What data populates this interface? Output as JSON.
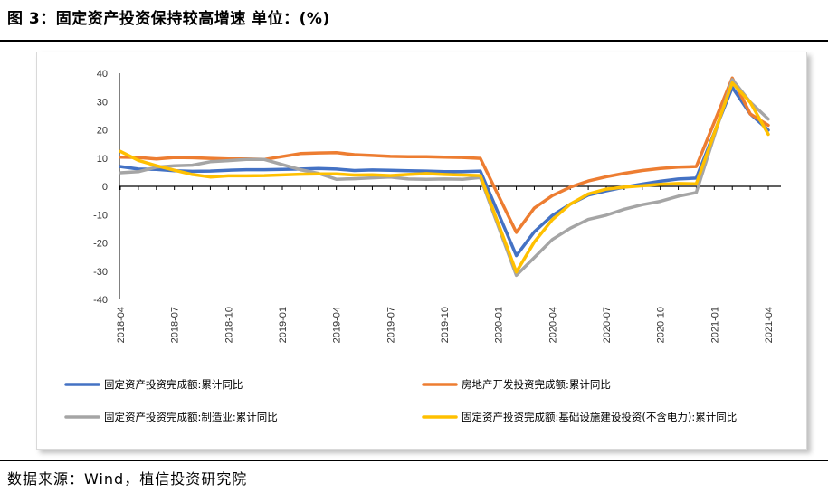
{
  "page": {
    "title": "图 3：固定资产投资保持较高增速 单位：(%)",
    "source": "数据来源：Wind，植信投资研究院"
  },
  "chart_data": {
    "type": "line",
    "title": "图 3：固定资产投资保持较高增速 单位：(%)",
    "ylim": [
      -40,
      40
    ],
    "yticks": [
      40,
      30,
      20,
      10,
      0,
      -10,
      -20,
      -30,
      -40
    ],
    "grid": false,
    "legend_placement": "bottom",
    "x": [
      "2018-04",
      "2018-05",
      "2018-06",
      "2018-07",
      "2018-08",
      "2018-09",
      "2018-10",
      "2018-11",
      "2018-12",
      "2019-01",
      "2019-02",
      "2019-03",
      "2019-04",
      "2019-05",
      "2019-06",
      "2019-07",
      "2019-08",
      "2019-09",
      "2019-10",
      "2019-11",
      "2019-12",
      "2020-01",
      "2020-02",
      "2020-03",
      "2020-04",
      "2020-05",
      "2020-06",
      "2020-07",
      "2020-08",
      "2020-09",
      "2020-10",
      "2020-11",
      "2020-12",
      "2021-01",
      "2021-02",
      "2021-03",
      "2021-04"
    ],
    "xtick_labels": [
      "2018-04",
      "2018-07",
      "2018-10",
      "2019-01",
      "2019-04",
      "2019-07",
      "2019-10",
      "2020-01",
      "2020-04",
      "2020-07",
      "2020-10",
      "2021-01",
      "2021-04"
    ],
    "series": [
      {
        "name": "固定资产投资完成额:累计同比",
        "color": "#4472c4",
        "values": [
          7,
          6.1,
          6,
          5.5,
          5.3,
          5.4,
          5.7,
          5.9,
          5.9,
          null,
          6.1,
          6.3,
          6.1,
          5.6,
          5.8,
          5.7,
          5.5,
          5.4,
          5.2,
          5.2,
          5.4,
          null,
          -24.5,
          -16.1,
          -10.3,
          -6.3,
          -3.1,
          -1.6,
          -0.3,
          0.8,
          1.8,
          2.6,
          2.9,
          null,
          35,
          25.6,
          19.9
        ]
      },
      {
        "name": "房地产开发投资完成额:累计同比",
        "color": "#ed7d31",
        "values": [
          10.3,
          10.2,
          9.7,
          10.2,
          10.1,
          9.9,
          9.7,
          9.7,
          9.5,
          null,
          11.6,
          11.8,
          11.9,
          11.2,
          10.9,
          10.6,
          10.5,
          10.5,
          10.3,
          10.2,
          9.9,
          null,
          -16.3,
          -7.7,
          -3.3,
          -0.3,
          1.9,
          3.4,
          4.6,
          5.6,
          6.3,
          6.8,
          7,
          null,
          38.3,
          25.6,
          21.6
        ]
      },
      {
        "name": "固定资产投资完成额:制造业:累计同比",
        "color": "#a5a5a5",
        "values": [
          4.8,
          5.2,
          6.8,
          7.3,
          7.5,
          8.7,
          9.1,
          9.5,
          9.5,
          null,
          5.9,
          4.6,
          2.5,
          2.7,
          3,
          3.3,
          2.6,
          2.5,
          2.6,
          2.5,
          3.1,
          null,
          -31.5,
          -25.2,
          -18.8,
          -14.8,
          -11.7,
          -10.2,
          -8.1,
          -6.5,
          -5.3,
          -3.5,
          -2.2,
          null,
          37.8,
          29.8,
          23.8
        ]
      },
      {
        "name": "固定资产投资完成额:基础设施建设投资(不含电力):累计同比",
        "color": "#ffc000",
        "values": [
          12.4,
          9.2,
          7.3,
          5.7,
          4.2,
          3.3,
          3.7,
          3.7,
          3.8,
          null,
          4.3,
          4.4,
          4.4,
          4,
          4.1,
          3.8,
          4.2,
          4.5,
          4.2,
          4,
          3.8,
          null,
          -30.3,
          -19.7,
          -11.8,
          -6.3,
          -2.7,
          -1,
          -0.3,
          0.2,
          0.7,
          1,
          0.9,
          null,
          36.6,
          29.7,
          18.4
        ]
      }
    ]
  }
}
